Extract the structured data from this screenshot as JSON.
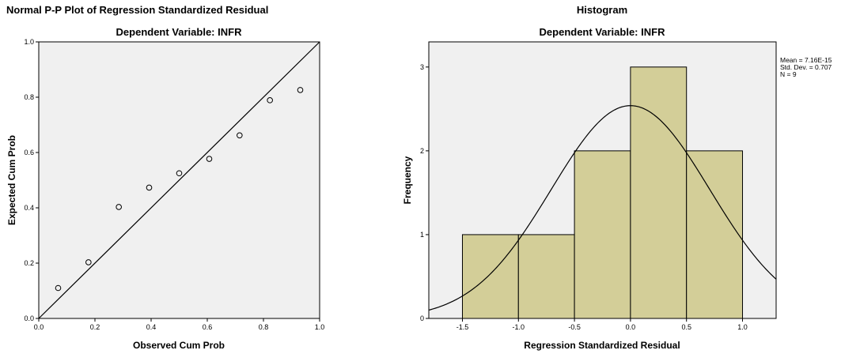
{
  "chart_data": [
    {
      "type": "scatter",
      "title": "Normal P-P Plot of Regression Standardized Residual",
      "subtitle": "Dependent Variable: INFR",
      "xlabel": "Observed Cum Prob",
      "ylabel": "Expected Cum Prob",
      "xlim": [
        0,
        1
      ],
      "ylim": [
        0,
        1
      ],
      "xticks": [
        "0.0",
        "0.2",
        "0.4",
        "0.6",
        "0.8",
        "1.0"
      ],
      "yticks": [
        "0.0",
        "0.2",
        "0.4",
        "0.6",
        "0.8",
        "1.0"
      ],
      "reference_line": [
        [
          0,
          0
        ],
        [
          1,
          1
        ]
      ],
      "points": [
        {
          "x": 0.069,
          "y": 0.11
        },
        {
          "x": 0.177,
          "y": 0.203
        },
        {
          "x": 0.285,
          "y": 0.403
        },
        {
          "x": 0.393,
          "y": 0.473
        },
        {
          "x": 0.5,
          "y": 0.525
        },
        {
          "x": 0.607,
          "y": 0.577
        },
        {
          "x": 0.715,
          "y": 0.662
        },
        {
          "x": 0.823,
          "y": 0.789
        },
        {
          "x": 0.931,
          "y": 0.826
        }
      ],
      "colors": {
        "plot_bg": "#f0f0f0",
        "line": "#000000",
        "marker": "#000000"
      }
    },
    {
      "type": "bar",
      "title": "Histogram",
      "subtitle": "Dependent Variable: INFR",
      "xlabel": "Regression Standardized Residual",
      "ylabel": "Frequency",
      "xlim": [
        -1.8,
        1.3
      ],
      "ylim": [
        0,
        3.3
      ],
      "xticks": [
        "-1.5",
        "-1.0",
        "-0.5",
        "0.0",
        "0.5",
        "1.0"
      ],
      "yticks": [
        "0",
        "1",
        "2",
        "3"
      ],
      "bins": [
        {
          "from": -1.5,
          "to": -1.0,
          "count": 1
        },
        {
          "from": -1.0,
          "to": -0.5,
          "count": 1
        },
        {
          "from": -0.5,
          "to": 0.0,
          "count": 2
        },
        {
          "from": 0.0,
          "to": 0.5,
          "count": 3
        },
        {
          "from": 0.5,
          "to": 1.0,
          "count": 2
        }
      ],
      "normal_curve": {
        "mean": 0.0,
        "sd": 0.707,
        "n": 9,
        "bin_width": 0.5
      },
      "stats": [
        "Mean = 7.16E-15",
        "Std. Dev. = 0.707",
        "N = 9"
      ],
      "colors": {
        "plot_bg": "#f0f0f0",
        "bar_fill": "#d3ce98",
        "bar_stroke": "#000000",
        "curve": "#000000"
      }
    }
  ]
}
